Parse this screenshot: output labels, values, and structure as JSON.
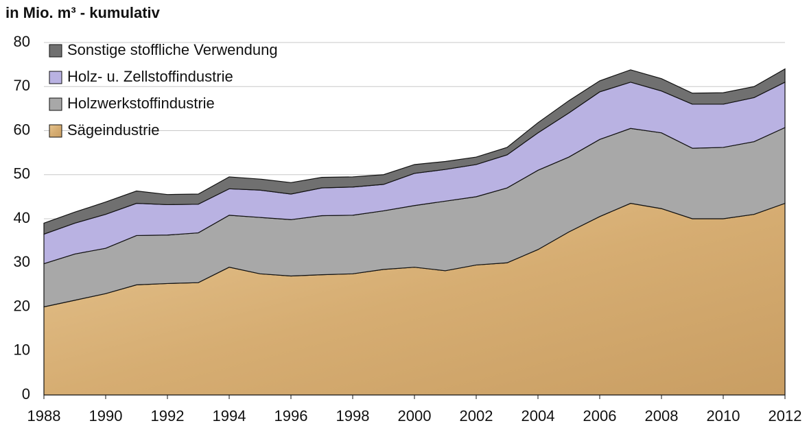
{
  "chart_data": {
    "type": "stacked_area",
    "title": "in Mio. m³ - kumulativ",
    "x": [
      1988,
      1989,
      1990,
      1991,
      1992,
      1993,
      1994,
      1995,
      1996,
      1997,
      1998,
      1999,
      2000,
      2001,
      2002,
      2003,
      2004,
      2005,
      2006,
      2007,
      2008,
      2009,
      2010,
      2011,
      2012
    ],
    "xlim": [
      1988,
      2012
    ],
    "xticks": [
      1988,
      1990,
      1992,
      1994,
      1996,
      1998,
      2000,
      2002,
      2004,
      2006,
      2008,
      2010,
      2012
    ],
    "ylim": [
      0,
      80
    ],
    "yticks": [
      0,
      10,
      20,
      30,
      40,
      50,
      60,
      70,
      80
    ],
    "grid": true,
    "legend": "upper left",
    "series": [
      {
        "name": "Sägeindustrie",
        "color": "#d9b27a",
        "values": [
          20,
          21.5,
          23,
          25,
          25.3,
          25.5,
          29,
          27.5,
          27,
          27.3,
          27.5,
          28.5,
          29,
          28.2,
          29.5,
          30,
          33,
          37,
          40.5,
          43.5,
          42.3,
          40,
          40,
          41,
          43.5
        ]
      },
      {
        "name": "Holzwerkstoffindustrie",
        "color": "#a8a8a8",
        "values": [
          9.8,
          10.5,
          10.3,
          11.2,
          11.0,
          11.3,
          11.8,
          12.8,
          12.8,
          13.4,
          13.3,
          13.3,
          14.0,
          15.8,
          15.5,
          17.0,
          18.0,
          17.0,
          17.5,
          17.0,
          17.2,
          16.0,
          16.2,
          16.5,
          17.2
        ]
      },
      {
        "name": "Holz- u. Zellstoffindustrie",
        "color": "#b9b2e2",
        "values": [
          6.7,
          7.0,
          7.7,
          7.3,
          6.9,
          6.5,
          6.0,
          6.2,
          5.8,
          6.3,
          6.4,
          6.0,
          7.3,
          7.2,
          7.3,
          7.5,
          8.5,
          10.0,
          10.8,
          10.5,
          9.5,
          10.0,
          9.8,
          10.0,
          10.3
        ]
      },
      {
        "name": "Sonstige stoffliche Verwendung",
        "color": "#707070",
        "values": [
          2.5,
          2.5,
          2.8,
          2.8,
          2.3,
          2.3,
          2.7,
          2.5,
          2.6,
          2.4,
          2.3,
          2.2,
          2.0,
          1.8,
          1.7,
          1.7,
          2.3,
          2.8,
          2.5,
          2.8,
          2.8,
          2.5,
          2.6,
          2.5,
          3.0
        ]
      }
    ]
  }
}
